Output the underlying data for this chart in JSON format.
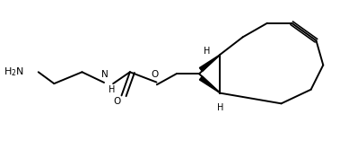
{
  "bg_color": "#ffffff",
  "line_color": "#000000",
  "line_width": 1.4,
  "text_color": "#000000",
  "font_size": 7.5,
  "figsize": [
    3.98,
    1.66
  ],
  "dpi": 100,
  "xlim": [
    0,
    10
  ],
  "ylim": [
    0,
    4.16
  ]
}
